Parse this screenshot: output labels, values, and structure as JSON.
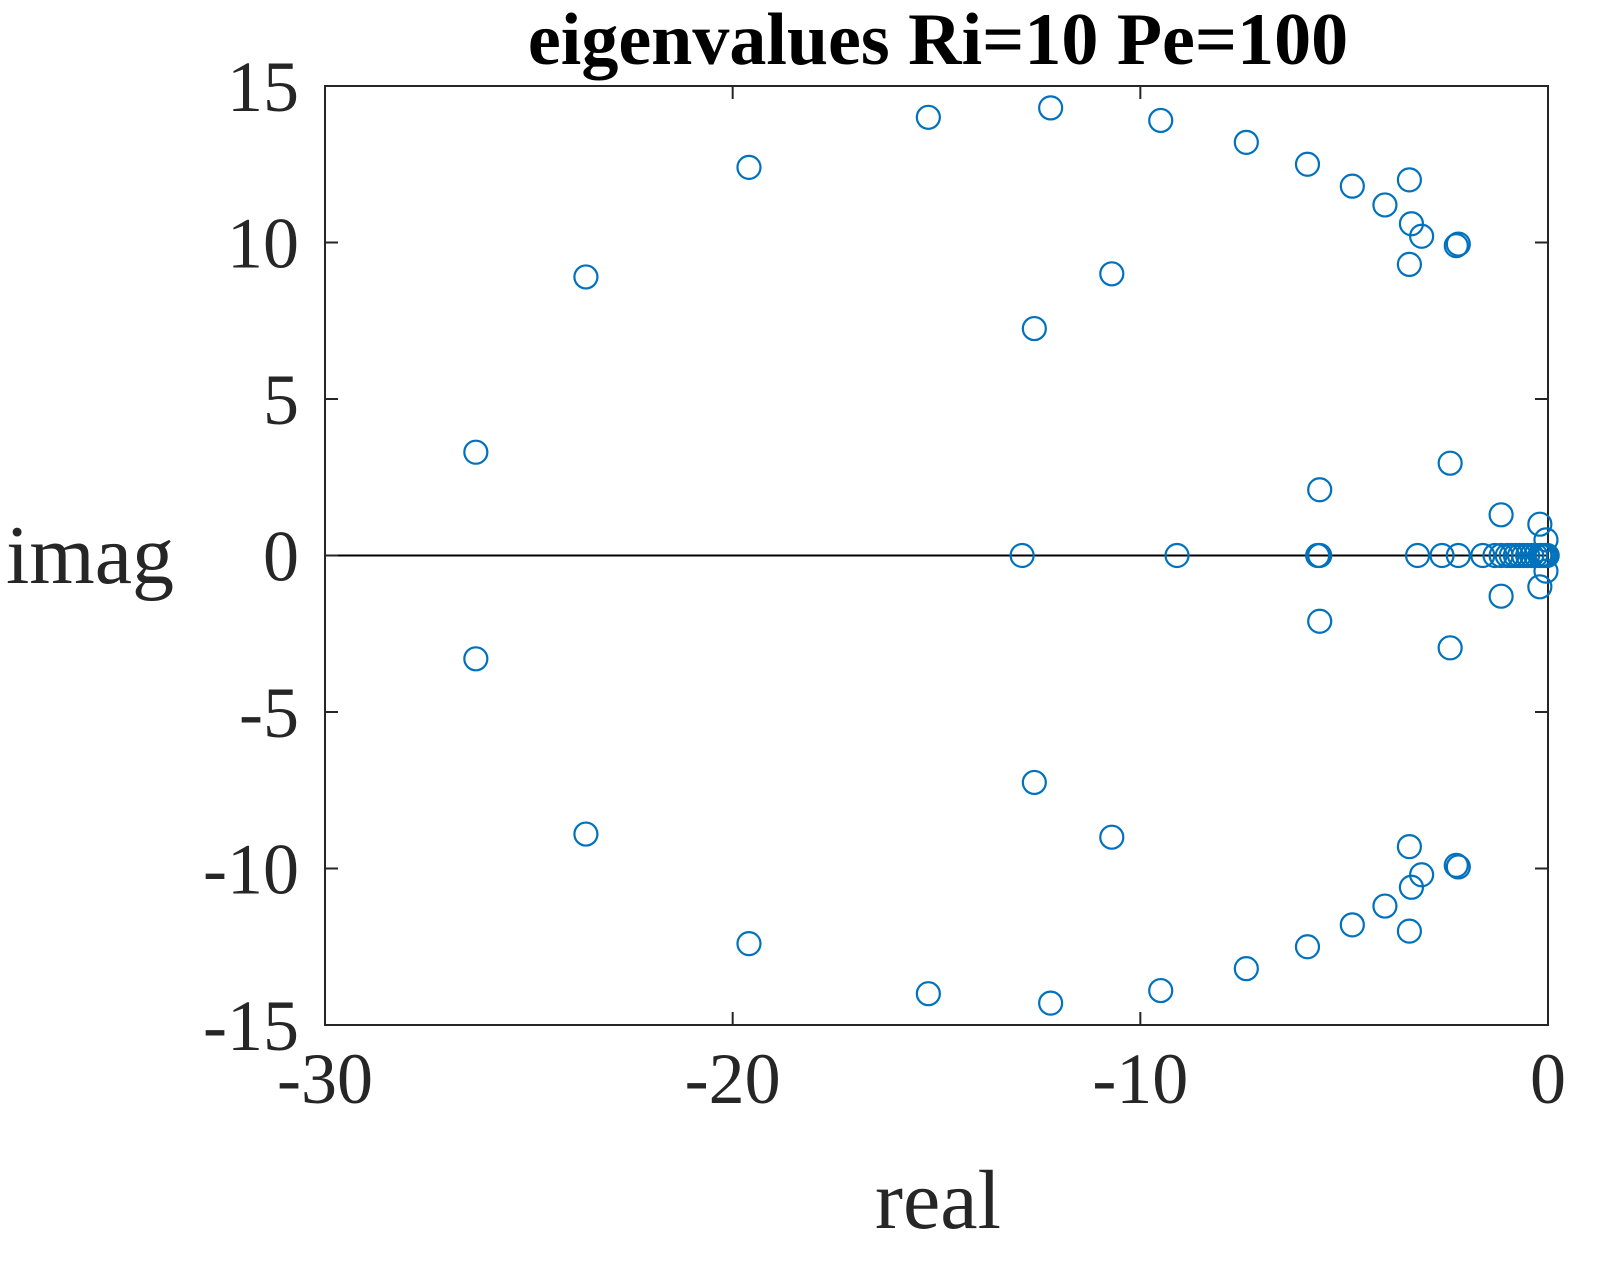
{
  "chart_data": {
    "type": "scatter",
    "title": "eigenvalues Ri=10 Pe=100",
    "xlabel": "real",
    "ylabel": "imag",
    "xlim": [
      -30,
      0
    ],
    "ylim": [
      -15,
      15
    ],
    "xticks": [
      -30,
      -20,
      -10,
      0
    ],
    "yticks": [
      -15,
      -10,
      -5,
      0,
      5,
      10,
      15
    ],
    "xtick_labels": [
      "-30",
      "-20",
      "-10",
      "0"
    ],
    "ytick_labels": [
      "-15",
      "-10",
      "-5",
      "0",
      "5",
      "10",
      "15"
    ],
    "grid": false,
    "zero_line": true,
    "marker": "open-circle",
    "series_color": "#0072BD",
    "axis_color": "#262626",
    "series": [
      {
        "name": "eigenvalues",
        "x": [
          -26.3,
          -26.3,
          -23.6,
          -23.6,
          -19.6,
          -19.6,
          -15.2,
          -15.2,
          -12.2,
          -12.2,
          -9.5,
          -9.5,
          -7.4,
          -7.4,
          -5.9,
          -5.9,
          -4.8,
          -4.8,
          -4.0,
          -4.0,
          -3.4,
          -3.4,
          -3.35,
          -3.35,
          -3.4,
          -3.4,
          -3.1,
          -3.1,
          -2.2,
          -2.2,
          -2.25,
          -2.25,
          -10.7,
          -10.7,
          -12.6,
          -12.6,
          -2.4,
          -2.4,
          -5.6,
          -5.6,
          -1.15,
          -1.15,
          -0.2,
          -0.2,
          -0.05,
          -0.05,
          -12.9,
          -9.1,
          -5.65,
          -5.6,
          -3.2,
          -2.6,
          -2.2,
          -1.6,
          -1.3,
          -1.15,
          -1.0,
          -0.9,
          -0.8,
          -0.7,
          -0.6,
          -0.5,
          -0.4,
          -0.3,
          -0.2,
          -0.15,
          -0.1,
          -0.05,
          -0.02
        ],
        "y": [
          3.3,
          -3.3,
          8.9,
          -8.9,
          12.4,
          -12.4,
          14.0,
          -14.0,
          14.3,
          -14.3,
          13.9,
          -13.9,
          13.2,
          -13.2,
          12.5,
          -12.5,
          11.8,
          -11.8,
          11.2,
          -11.2,
          12.0,
          -12.0,
          10.6,
          -10.6,
          9.3,
          -9.3,
          10.2,
          -10.2,
          9.95,
          -9.95,
          9.9,
          -9.9,
          9.0,
          -9.0,
          7.25,
          -7.25,
          2.95,
          -2.95,
          2.1,
          -2.1,
          1.3,
          -1.3,
          1.0,
          -1.0,
          0.5,
          -0.5,
          0,
          0,
          0,
          0,
          0,
          0,
          0,
          0,
          0,
          0,
          0,
          0,
          0,
          0,
          0,
          0,
          0,
          0,
          0,
          0,
          0,
          0,
          0
        ]
      }
    ]
  }
}
